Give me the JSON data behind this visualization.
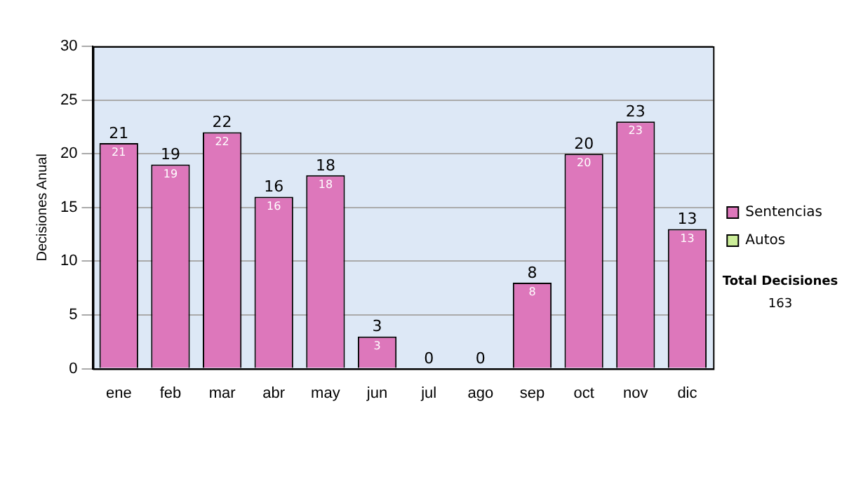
{
  "chart_data": {
    "type": "bar",
    "stacked": true,
    "ylabel": "Decisiones Anual",
    "categories": [
      "ene",
      "feb",
      "mar",
      "abr",
      "may",
      "jun",
      "jul",
      "ago",
      "sep",
      "oct",
      "nov",
      "dic"
    ],
    "series": [
      {
        "name": "Sentencias",
        "color": "#dd77bb",
        "values": [
          21,
          19,
          22,
          16,
          18,
          3,
          0,
          0,
          8,
          20,
          23,
          13
        ],
        "value_labels": [
          "21",
          "19",
          "22",
          "16",
          "18",
          "3",
          null,
          null,
          "8",
          "20",
          "23",
          "13"
        ]
      },
      {
        "name": "Autos",
        "color": "#ccee99",
        "values": [
          0,
          0,
          0,
          0,
          0,
          0,
          0,
          0,
          0,
          0,
          0,
          0
        ]
      }
    ],
    "totals": [
      "21",
      "19",
      "22",
      "16",
      "18",
      "3",
      "0",
      "0",
      "8",
      "20",
      "23",
      "13"
    ],
    "ylim": [
      0,
      30
    ],
    "yticks": [
      0,
      5,
      10,
      15,
      20,
      25,
      30
    ],
    "grid": "y",
    "legend": "right",
    "annotations": [
      "Total Decisiones",
      "163"
    ]
  }
}
